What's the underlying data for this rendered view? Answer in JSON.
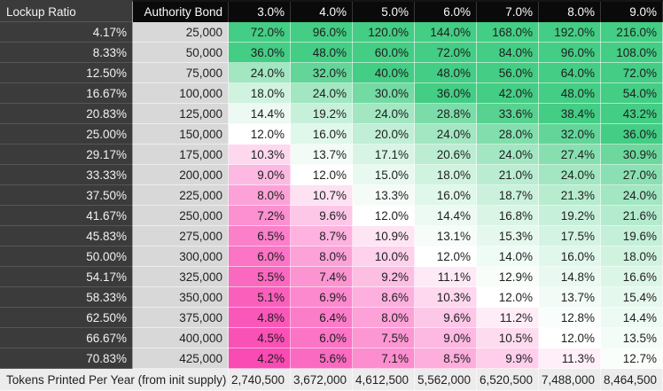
{
  "header": {
    "lockup_label": "Lockup Ratio",
    "bond_label": "Authority Bond",
    "rates": [
      "3.0%",
      "4.0%",
      "5.0%",
      "6.0%",
      "7.0%",
      "8.0%",
      "9.0%"
    ]
  },
  "rows": [
    {
      "ratio": "4.17%",
      "bond": "25,000",
      "values": [
        72.0,
        96.0,
        120.0,
        144.0,
        168.0,
        192.0,
        216.0
      ]
    },
    {
      "ratio": "8.33%",
      "bond": "50,000",
      "values": [
        36.0,
        48.0,
        60.0,
        72.0,
        84.0,
        96.0,
        108.0
      ]
    },
    {
      "ratio": "12.50%",
      "bond": "75,000",
      "values": [
        24.0,
        32.0,
        40.0,
        48.0,
        56.0,
        64.0,
        72.0
      ]
    },
    {
      "ratio": "16.67%",
      "bond": "100,000",
      "values": [
        18.0,
        24.0,
        30.0,
        36.0,
        42.0,
        48.0,
        54.0
      ]
    },
    {
      "ratio": "20.83%",
      "bond": "125,000",
      "values": [
        14.4,
        19.2,
        24.0,
        28.8,
        33.6,
        38.4,
        43.2
      ]
    },
    {
      "ratio": "25.00%",
      "bond": "150,000",
      "values": [
        12.0,
        16.0,
        20.0,
        24.0,
        28.0,
        32.0,
        36.0
      ]
    },
    {
      "ratio": "29.17%",
      "bond": "175,000",
      "values": [
        10.3,
        13.7,
        17.1,
        20.6,
        24.0,
        27.4,
        30.9
      ]
    },
    {
      "ratio": "33.33%",
      "bond": "200,000",
      "values": [
        9.0,
        12.0,
        15.0,
        18.0,
        21.0,
        24.0,
        27.0
      ]
    },
    {
      "ratio": "37.50%",
      "bond": "225,000",
      "values": [
        8.0,
        10.7,
        13.3,
        16.0,
        18.7,
        21.3,
        24.0
      ]
    },
    {
      "ratio": "41.67%",
      "bond": "250,000",
      "values": [
        7.2,
        9.6,
        12.0,
        14.4,
        16.8,
        19.2,
        21.6
      ]
    },
    {
      "ratio": "45.83%",
      "bond": "275,000",
      "values": [
        6.5,
        8.7,
        10.9,
        13.1,
        15.3,
        17.5,
        19.6
      ]
    },
    {
      "ratio": "50.00%",
      "bond": "300,000",
      "values": [
        6.0,
        8.0,
        10.0,
        12.0,
        14.0,
        16.0,
        18.0
      ]
    },
    {
      "ratio": "54.17%",
      "bond": "325,000",
      "values": [
        5.5,
        7.4,
        9.2,
        11.1,
        12.9,
        14.8,
        16.6
      ]
    },
    {
      "ratio": "58.33%",
      "bond": "350,000",
      "values": [
        5.1,
        6.9,
        8.6,
        10.3,
        12.0,
        13.7,
        15.4
      ]
    },
    {
      "ratio": "62.50%",
      "bond": "375,000",
      "values": [
        4.8,
        6.4,
        8.0,
        9.6,
        11.2,
        12.8,
        14.4
      ]
    },
    {
      "ratio": "66.67%",
      "bond": "400,000",
      "values": [
        4.5,
        6.0,
        7.5,
        9.0,
        10.5,
        12.0,
        13.5
      ]
    },
    {
      "ratio": "70.83%",
      "bond": "425,000",
      "values": [
        4.2,
        5.6,
        7.1,
        8.5,
        9.9,
        11.3,
        12.7
      ]
    }
  ],
  "footer": {
    "label": "Tokens Printed Per Year (from init supply)",
    "values": [
      "2,740,500",
      "3,672,000",
      "4,612,500",
      "5,562,000",
      "6,520,500",
      "7,488,000",
      "8,464,500"
    ]
  },
  "heatmap": {
    "mid_value": 12,
    "green_saturate_value": 36,
    "pink_saturate_value": 4.2,
    "mid_color": "#ffffff",
    "green_color": "#44cd84",
    "pink_color": "#fa4ab3"
  },
  "style_colors": {
    "header_bg": "#0a0a0a",
    "ratio_column_bg": "#3b3b3b",
    "bond_column_bg": "#d8d8d8",
    "footer_bg": "#ececec"
  }
}
